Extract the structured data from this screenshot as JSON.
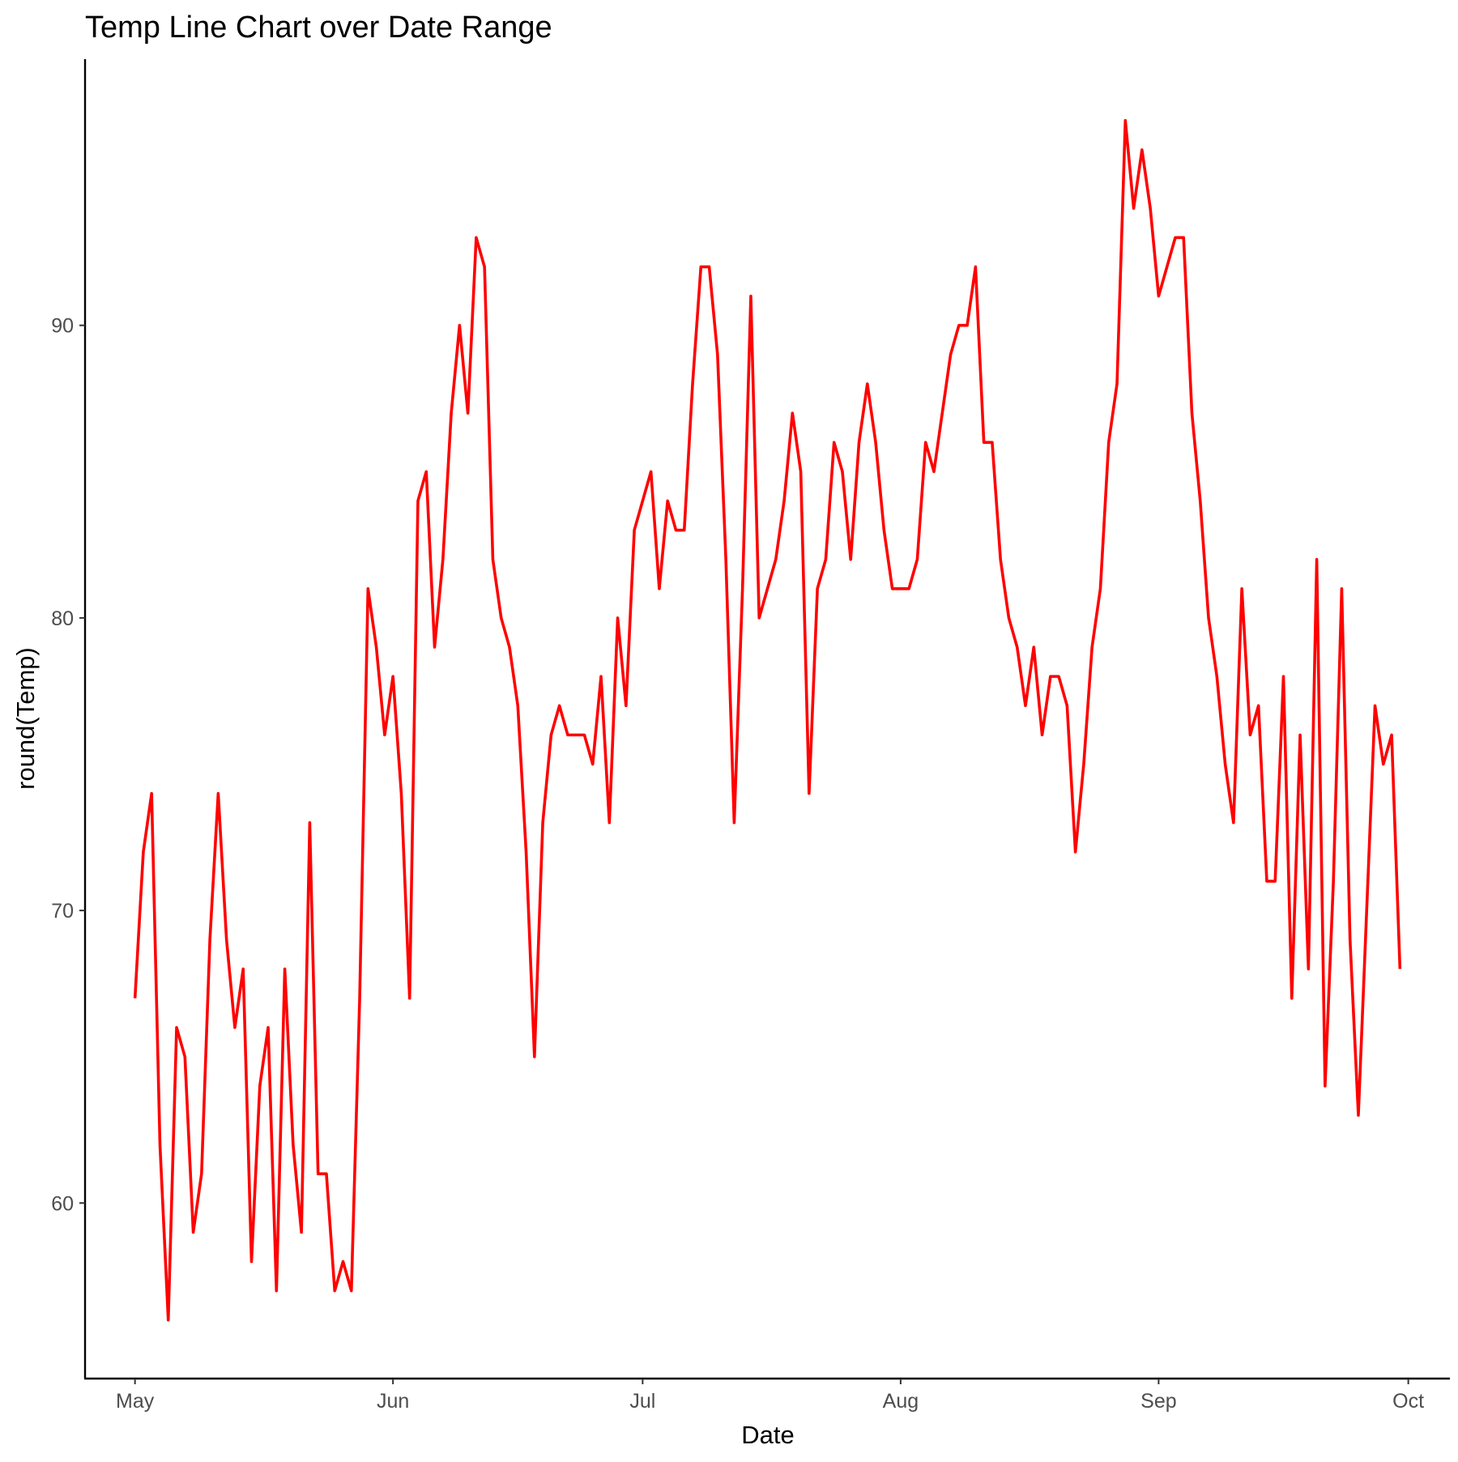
{
  "chart_data": {
    "type": "line",
    "title": "Temp Line Chart over Date Range",
    "xlabel": "Date",
    "ylabel": "round(Temp)",
    "x_range": [
      "1973-04-25",
      "1973-10-06"
    ],
    "ylim": [
      54,
      99.1
    ],
    "x_ticks": [
      {
        "date": "1973-05-01",
        "label": "May"
      },
      {
        "date": "1973-06-01",
        "label": "Jun"
      },
      {
        "date": "1973-07-01",
        "label": "Jul"
      },
      {
        "date": "1973-08-01",
        "label": "Aug"
      },
      {
        "date": "1973-09-01",
        "label": "Sep"
      },
      {
        "date": "1973-10-01",
        "label": "Oct"
      }
    ],
    "y_ticks": [
      60,
      70,
      80,
      90
    ],
    "grid": false,
    "legend": "none",
    "line_color": "#ff0000",
    "series": [
      {
        "x_start": "1973-05-01",
        "x_step_days": 1,
        "values": [
          67,
          72,
          74,
          62,
          56,
          66,
          65,
          59,
          61,
          69,
          74,
          69,
          66,
          68,
          58,
          64,
          66,
          57,
          68,
          62,
          59,
          73,
          61,
          61,
          57,
          58,
          57,
          67,
          81,
          79,
          76,
          78,
          74,
          67,
          84,
          85,
          79,
          82,
          87,
          90,
          87,
          93,
          92,
          82,
          80,
          79,
          77,
          72,
          65,
          73,
          76,
          77,
          76,
          76,
          76,
          75,
          78,
          73,
          80,
          77,
          83,
          84,
          85,
          81,
          84,
          83,
          83,
          88,
          92,
          92,
          89,
          82,
          73,
          81,
          91,
          80,
          81,
          82,
          84,
          87,
          85,
          74,
          81,
          82,
          86,
          85,
          82,
          86,
          88,
          86,
          83,
          81,
          81,
          81,
          82,
          86,
          85,
          87,
          89,
          90,
          90,
          92,
          86,
          86,
          82,
          80,
          79,
          77,
          79,
          76,
          78,
          78,
          77,
          72,
          75,
          79,
          81,
          86,
          88,
          97,
          94,
          96,
          94,
          91,
          92,
          93,
          93,
          87,
          84,
          80,
          78,
          75,
          73,
          81,
          76,
          77,
          71,
          71,
          78,
          67,
          76,
          68,
          82,
          64,
          71,
          81,
          69,
          63,
          70,
          77,
          75,
          76,
          68
        ]
      }
    ]
  }
}
